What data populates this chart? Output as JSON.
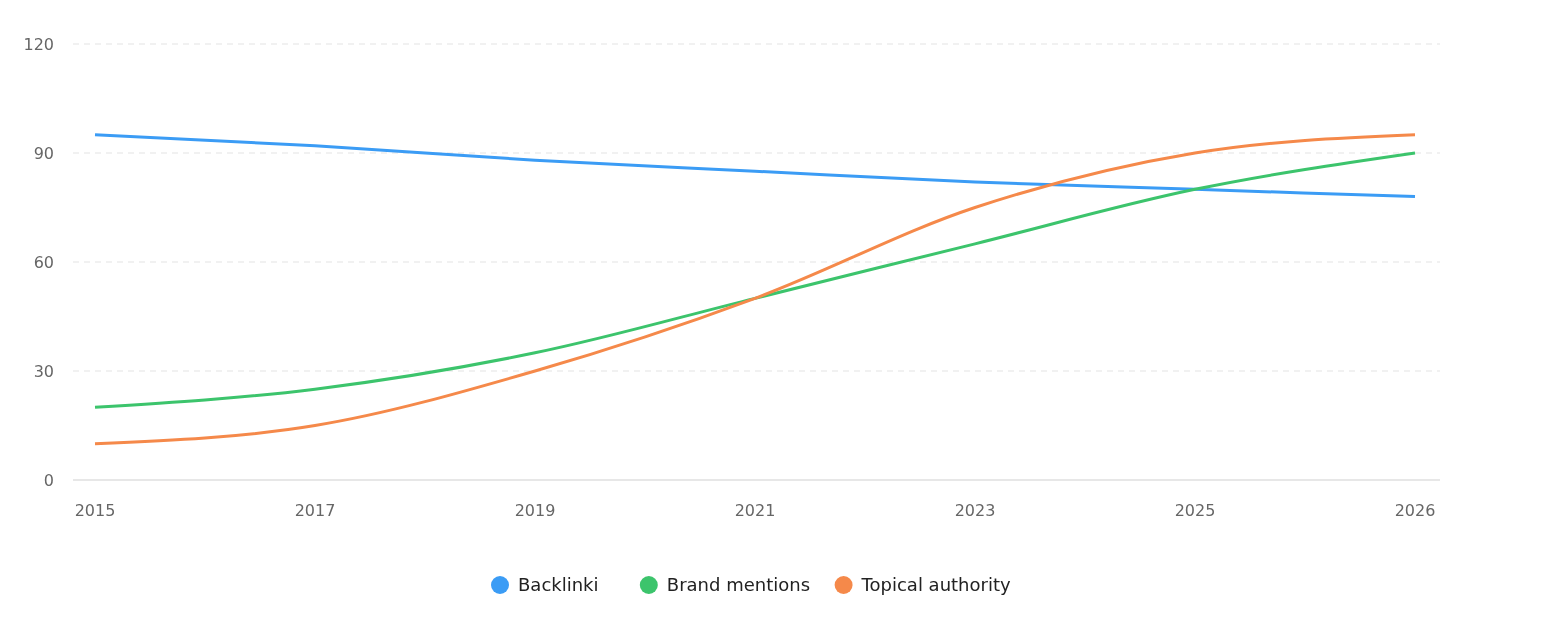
{
  "chart_data": {
    "type": "line",
    "categories": [
      "2015",
      "2017",
      "2019",
      "2021",
      "2023",
      "2025",
      "2026"
    ],
    "series": [
      {
        "name": "Backlinki",
        "color": "#3b9cf5",
        "values": [
          95,
          92,
          88,
          85,
          82,
          80,
          78
        ]
      },
      {
        "name": "Brand mentions",
        "color": "#3cc46c",
        "values": [
          20,
          25,
          35,
          50,
          65,
          80,
          90
        ]
      },
      {
        "name": "Topical authority",
        "color": "#f5894a",
        "values": [
          10,
          15,
          30,
          50,
          75,
          90,
          95
        ]
      }
    ],
    "ylim": [
      0,
      120
    ],
    "yticks": [
      0,
      30,
      60,
      90,
      120
    ],
    "grid": "y",
    "legend": "bottom",
    "marker": "none",
    "line_style": "solid"
  }
}
